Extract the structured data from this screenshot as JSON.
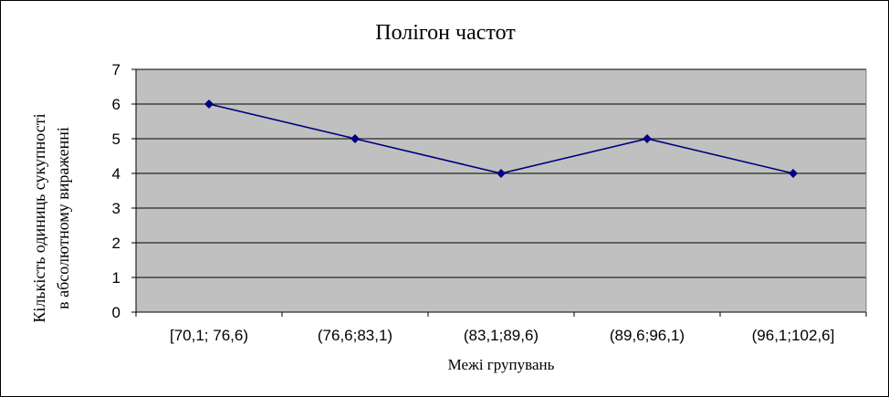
{
  "chart_data": {
    "type": "line",
    "title": "Полігон частот",
    "xlabel": "Межі групувань",
    "ylabel_lines": [
      "Кількість одиниць сукупності",
      "в абсолютному вираженні"
    ],
    "categories": [
      "[70,1; 76,6)",
      "(76,6;83,1)",
      "(83,1;89,6)",
      "(89,6;96,1)",
      "(96,1;102,6]"
    ],
    "series": [
      {
        "values": [
          6,
          5,
          4,
          5,
          4
        ]
      }
    ],
    "ylim": [
      0,
      7
    ],
    "yticks": [
      0,
      1,
      2,
      3,
      4,
      5,
      6,
      7
    ],
    "grid": true,
    "legend": "none",
    "colors": {
      "plot_background": "#c0c0c0",
      "line": "#000080",
      "marker": "#000080",
      "grid": "#000000"
    }
  }
}
